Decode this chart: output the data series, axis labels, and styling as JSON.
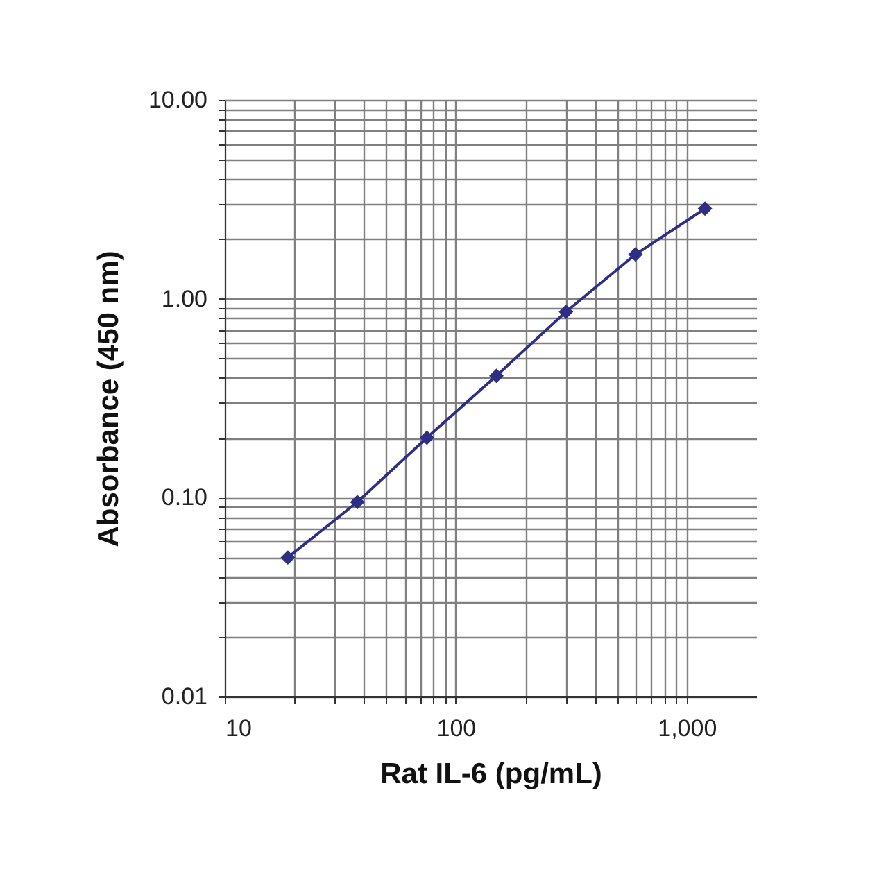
{
  "chart_data": {
    "type": "line",
    "xlabel": "Rat IL-6 (pg/mL)",
    "ylabel": "Absorbance (450 nm)",
    "x": [
      18.75,
      37.5,
      75,
      150,
      300,
      600,
      1200
    ],
    "series": [
      {
        "color": "#2e2e84",
        "values": [
          0.05,
          0.095,
          0.2,
          0.41,
          0.86,
          1.67,
          2.84
        ]
      }
    ],
    "log": "xy",
    "xlim": [
      10,
      2000
    ],
    "ylim": [
      0.01,
      10
    ],
    "xticks": [
      10,
      {
        "value": 20,
        "label": null
      },
      {
        "value": 30,
        "label": null
      },
      {
        "value": 40,
        "label": null
      },
      {
        "value": 50,
        "label": null
      },
      {
        "value": 60,
        "label": null
      },
      {
        "value": 70,
        "label": null
      },
      {
        "value": 80,
        "label": null
      },
      {
        "value": 90,
        "label": null
      },
      100,
      {
        "value": 200,
        "label": null
      },
      {
        "value": 300,
        "label": null
      },
      {
        "value": 400,
        "label": null
      },
      {
        "value": 500,
        "label": null
      },
      {
        "value": 600,
        "label": null
      },
      {
        "value": 700,
        "label": null
      },
      {
        "value": 800,
        "label": null
      },
      {
        "value": 900,
        "label": null
      },
      {
        "value": 1000,
        "label": "1,000"
      }
    ],
    "yticks": [
      {
        "value": 0.01,
        "label": "0.01"
      },
      {
        "value": 0.02,
        "label": null
      },
      {
        "value": 0.03,
        "label": null
      },
      {
        "value": 0.04,
        "label": null
      },
      {
        "value": 0.05,
        "label": null
      },
      {
        "value": 0.06,
        "label": null
      },
      {
        "value": 0.07,
        "label": null
      },
      {
        "value": 0.08,
        "label": null
      },
      {
        "value": 0.09,
        "label": null
      },
      {
        "value": 0.1,
        "label": "0.10"
      },
      {
        "value": 0.2,
        "label": null
      },
      {
        "value": 0.3,
        "label": null
      },
      {
        "value": 0.4,
        "label": null
      },
      {
        "value": 0.5,
        "label": null
      },
      {
        "value": 0.6,
        "label": null
      },
      {
        "value": 0.7,
        "label": null
      },
      {
        "value": 0.8,
        "label": null
      },
      {
        "value": 0.9,
        "label": null
      },
      {
        "value": 1,
        "label": "1.00"
      },
      {
        "value": 2,
        "label": null
      },
      {
        "value": 3,
        "label": null
      },
      {
        "value": 4,
        "label": null
      },
      {
        "value": 5,
        "label": null
      },
      {
        "value": 6,
        "label": null
      },
      {
        "value": 7,
        "label": null
      },
      {
        "value": 8,
        "label": null
      },
      {
        "value": 9,
        "label": null
      },
      {
        "value": 10,
        "label": "10.00"
      }
    ],
    "grid": true,
    "marker": "diamond",
    "line_style": "solid"
  }
}
